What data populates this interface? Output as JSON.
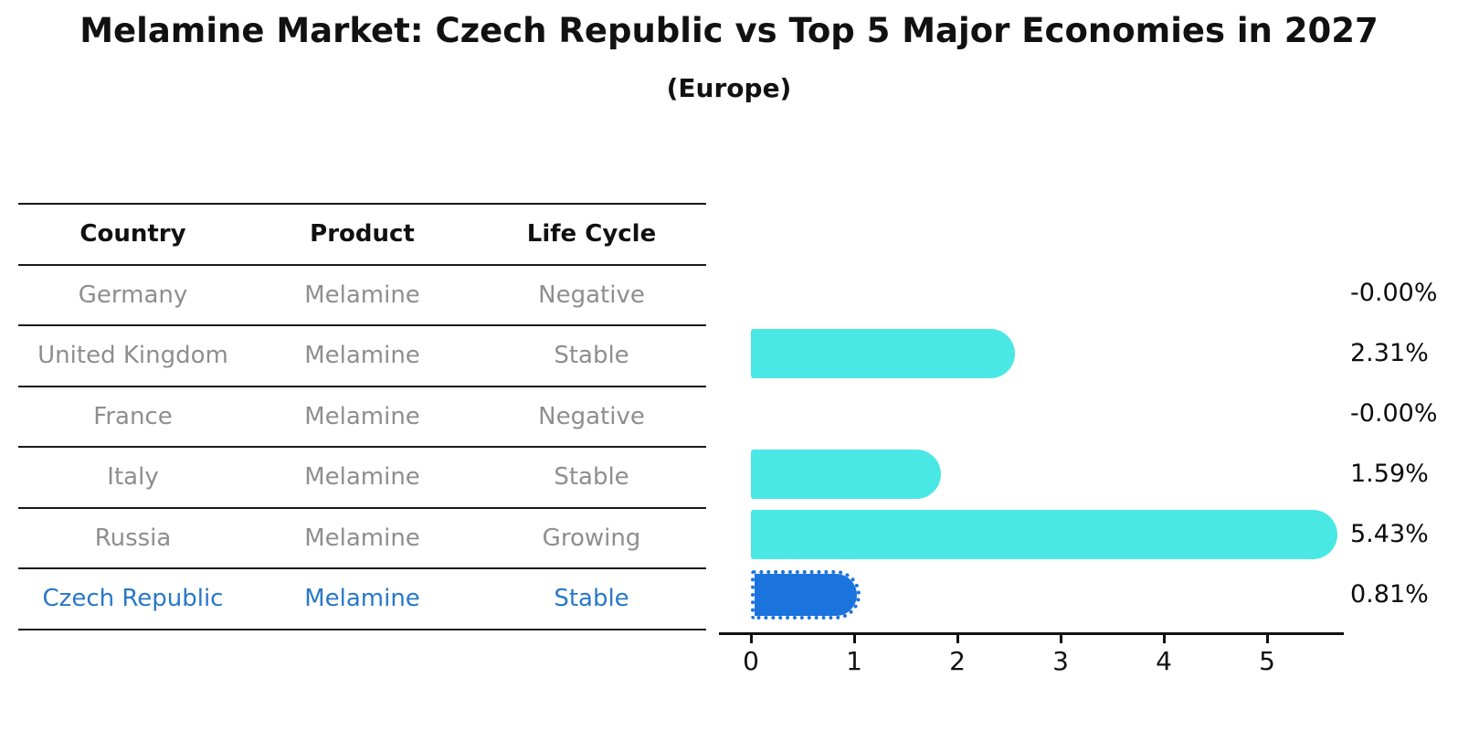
{
  "title": "Melamine Market: Czech Republic vs Top 5 Major Economies in 2027",
  "subtitle": "(Europe)",
  "table": {
    "headers": [
      "Country",
      "Product",
      "Life Cycle"
    ],
    "rows": [
      {
        "country": "Germany",
        "product": "Melamine",
        "life_cycle": "Negative",
        "highlight": false
      },
      {
        "country": "United Kingdom",
        "product": "Melamine",
        "life_cycle": "Stable",
        "highlight": false
      },
      {
        "country": "France",
        "product": "Melamine",
        "life_cycle": "Negative",
        "highlight": false
      },
      {
        "country": "Italy",
        "product": "Melamine",
        "life_cycle": "Stable",
        "highlight": false
      },
      {
        "country": "Russia",
        "product": "Melamine",
        "life_cycle": "Growing",
        "highlight": false
      },
      {
        "country": "Czech Republic",
        "product": "Melamine",
        "life_cycle": "Stable",
        "highlight": true
      }
    ]
  },
  "chart_data": {
    "type": "bar",
    "orientation": "horizontal",
    "title": "Melamine Market: Czech Republic vs Top 5 Major Economies in 2027 (Europe)",
    "categories": [
      "Germany",
      "United Kingdom",
      "France",
      "Italy",
      "Russia",
      "Czech Republic"
    ],
    "values": [
      -0.0,
      2.31,
      -0.0,
      1.59,
      5.43,
      0.81
    ],
    "value_labels": [
      "-0.00%",
      "2.31%",
      "-0.00%",
      "1.59%",
      "5.43%",
      "0.81%"
    ],
    "xlabel": "",
    "ylabel": "",
    "xticks": [
      0,
      1,
      2,
      3,
      4,
      5
    ],
    "xlim": [
      -0.31,
      5.74
    ],
    "grid": false,
    "legend": false,
    "highlight_index": 5,
    "bar_color": "#4ae8e4",
    "highlight_color": "#1b73de",
    "highlight_border_style": "dotted",
    "text_color_default": "#8e8e8e",
    "text_color_highlight": "#2878c8"
  }
}
